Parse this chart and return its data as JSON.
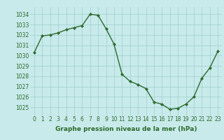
{
  "x": [
    0,
    1,
    2,
    3,
    4,
    5,
    6,
    7,
    8,
    9,
    10,
    11,
    12,
    13,
    14,
    15,
    16,
    17,
    18,
    19,
    20,
    21,
    22,
    23
  ],
  "y": [
    1030.3,
    1031.9,
    1032.0,
    1032.2,
    1032.5,
    1032.7,
    1032.9,
    1034.0,
    1033.9,
    1032.6,
    1031.1,
    1028.2,
    1027.5,
    1027.2,
    1026.8,
    1025.5,
    1025.3,
    1024.8,
    1024.9,
    1025.3,
    1026.0,
    1027.8,
    1028.8,
    1030.4
  ],
  "line_color": "#2d6a2d",
  "marker": "D",
  "marker_size": 2.2,
  "linewidth": 1.0,
  "bg_color": "#c8eaea",
  "grid_color": "#9ecece",
  "xlabel": "Graphe pression niveau de la mer (hPa)",
  "xlabel_color": "#2d6a2d",
  "xlabel_fontsize": 6.5,
  "tick_color": "#2d6a2d",
  "tick_fontsize": 5.5,
  "ylim": [
    1024.2,
    1034.7
  ],
  "xlim": [
    -0.5,
    23.5
  ],
  "yticks": [
    1025,
    1026,
    1027,
    1028,
    1029,
    1030,
    1031,
    1032,
    1033,
    1034
  ],
  "xticks": [
    0,
    1,
    2,
    3,
    4,
    5,
    6,
    7,
    8,
    9,
    10,
    11,
    12,
    13,
    14,
    15,
    16,
    17,
    18,
    19,
    20,
    21,
    22,
    23
  ]
}
